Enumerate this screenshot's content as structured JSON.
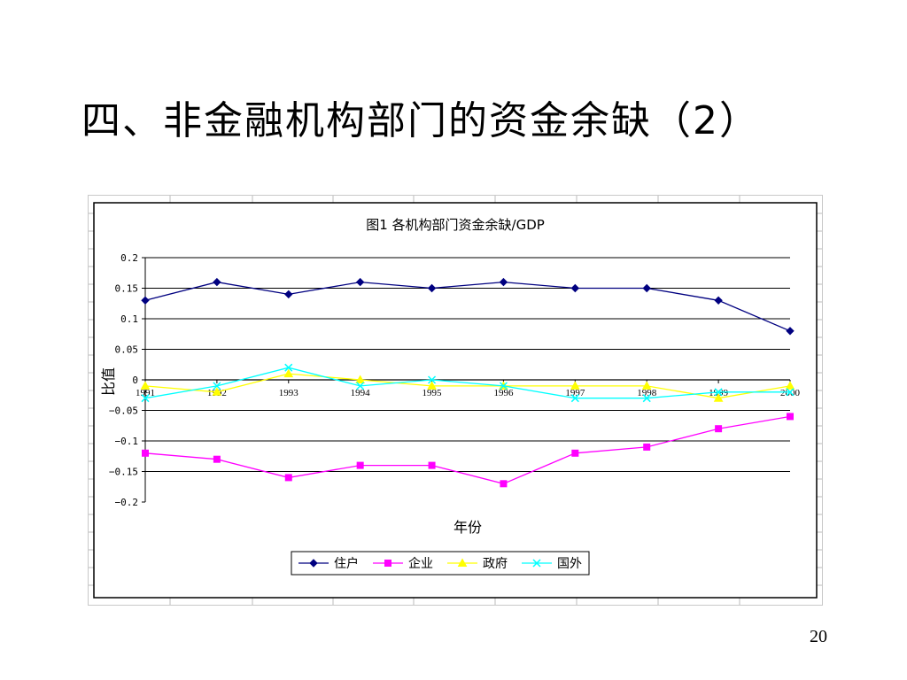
{
  "slide": {
    "title": "四、非金融机构部门的资金余缺（2）",
    "page_number": "20"
  },
  "chart_data": {
    "type": "line",
    "title": "图1 各机构部门资金余缺/GDP",
    "xlabel": "年份",
    "ylabel": "比值",
    "x": [
      "1991",
      "1992",
      "1993",
      "1994",
      "1995",
      "1996",
      "1997",
      "1998",
      "1999",
      "2000"
    ],
    "yticks": [
      "0.2",
      "0.15",
      "0.1",
      "0.05",
      "0",
      "−0.05",
      "−0.1",
      "−0.15",
      "−0.2"
    ],
    "ylim": [
      -0.2,
      0.2
    ],
    "grid": true,
    "legend_position": "bottom",
    "series": [
      {
        "name": "住户",
        "color": "#000080",
        "marker": "diamond",
        "values": [
          0.13,
          0.16,
          0.14,
          0.16,
          0.15,
          0.16,
          0.15,
          0.15,
          0.13,
          0.08
        ]
      },
      {
        "name": "企业",
        "color": "#ff00ff",
        "marker": "square",
        "values": [
          -0.12,
          -0.13,
          -0.16,
          -0.14,
          -0.14,
          -0.17,
          -0.12,
          -0.11,
          -0.08,
          -0.06
        ]
      },
      {
        "name": "政府",
        "color": "#ffff00",
        "marker": "triangle",
        "values": [
          -0.01,
          -0.02,
          0.01,
          0.0,
          -0.01,
          -0.01,
          -0.01,
          -0.01,
          -0.03,
          -0.01
        ]
      },
      {
        "name": "国外",
        "color": "#00ffff",
        "marker": "x",
        "values": [
          -0.03,
          -0.01,
          0.02,
          -0.01,
          0.0,
          -0.01,
          -0.03,
          -0.03,
          -0.02,
          -0.02
        ]
      }
    ]
  }
}
